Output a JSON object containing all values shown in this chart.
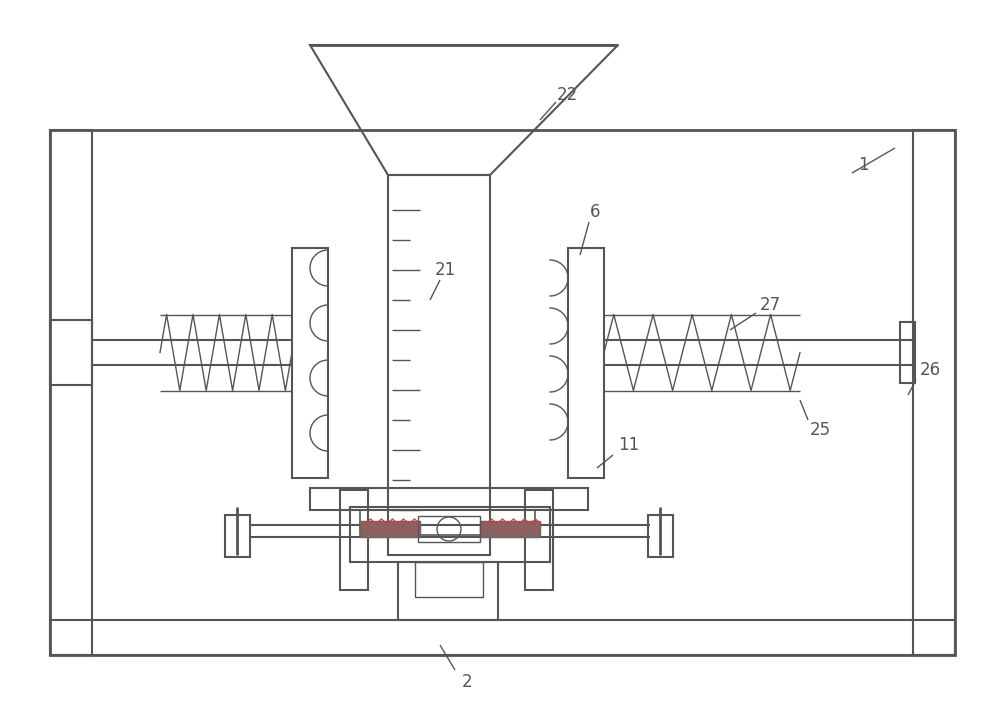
{
  "bg_color": "#ffffff",
  "lc": "#555555",
  "lw": 1.5,
  "tlw": 1.0,
  "figsize": [
    10.0,
    7.21
  ],
  "dpi": 100,
  "font_size": 12
}
